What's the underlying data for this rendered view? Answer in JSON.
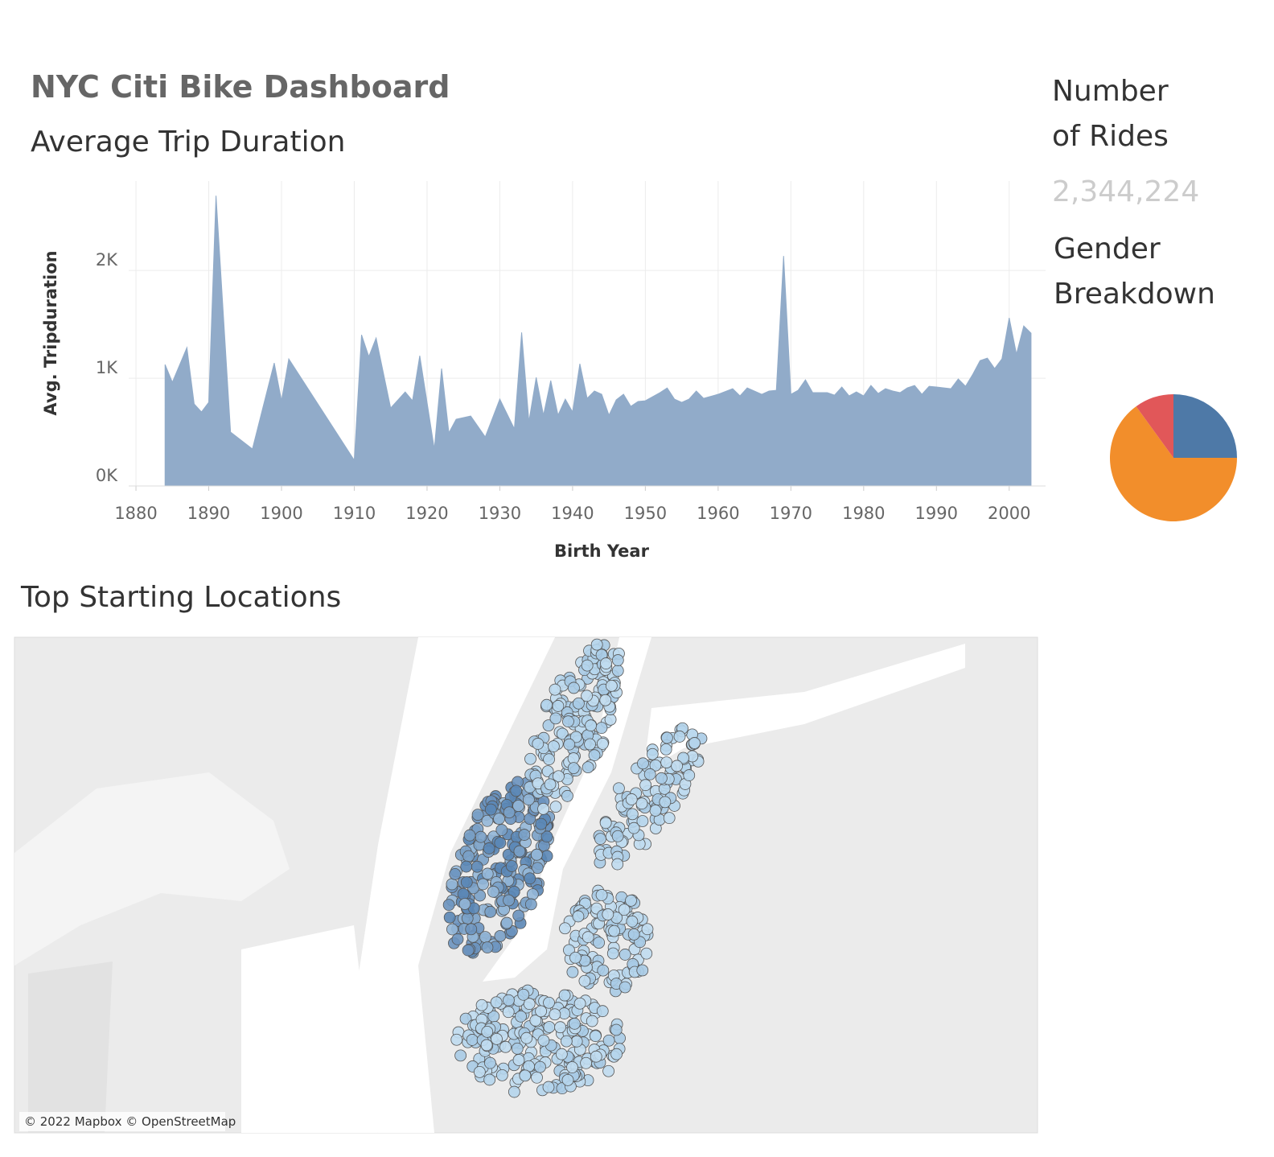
{
  "header": {
    "title": "NYC Citi Bike Dashboard"
  },
  "chart_data": [
    {
      "type": "area",
      "title": "Average Trip Duration",
      "x_label": "Birth Year",
      "y_label": "Avg. Tripduration",
      "color": "#91abc9",
      "x": [
        1884,
        1885,
        1887,
        1888,
        1889,
        1890,
        1891,
        1893,
        1896,
        1899,
        1900,
        1901,
        1910,
        1911,
        1912,
        1913,
        1915,
        1917,
        1918,
        1919,
        1921,
        1922,
        1923,
        1924,
        1926,
        1928,
        1930,
        1932,
        1933,
        1934,
        1935,
        1936,
        1937,
        1938,
        1939,
        1940,
        1941,
        1942,
        1943,
        1944,
        1945,
        1946,
        1947,
        1948,
        1949,
        1950,
        1952,
        1953,
        1954,
        1955,
        1956,
        1957,
        1958,
        1960,
        1962,
        1963,
        1964,
        1966,
        1967,
        1968,
        1969,
        1970,
        1971,
        1972,
        1973,
        1975,
        1976,
        1977,
        1978,
        1979,
        1980,
        1981,
        1982,
        1983,
        1984,
        1985,
        1986,
        1987,
        1988,
        1989,
        1990,
        1992,
        1993,
        1994,
        1995,
        1996,
        1997,
        1998,
        1999,
        2000,
        2001,
        2002,
        2003
      ],
      "values": [
        1127,
        963,
        1284,
        761,
        687,
        776,
        2694,
        500,
        343,
        1142,
        791,
        1179,
        239,
        1403,
        1201,
        1373,
        724,
        873,
        791,
        1209,
        343,
        1090,
        493,
        619,
        649,
        455,
        806,
        530,
        1425,
        597,
        1007,
        657,
        978,
        657,
        806,
        687,
        1134,
        813,
        881,
        851,
        657,
        799,
        851,
        739,
        784,
        791,
        866,
        910,
        806,
        776,
        806,
        881,
        813,
        851,
        903,
        836,
        910,
        851,
        881,
        888,
        2134,
        851,
        888,
        985,
        866,
        866,
        843,
        918,
        836,
        873,
        836,
        933,
        858,
        903,
        881,
        866,
        910,
        933,
        851,
        925,
        918,
        903,
        993,
        925,
        1037,
        1164,
        1187,
        1090,
        1179,
        1560,
        1224,
        1485,
        1418
      ],
      "xlim": [
        1879,
        2005
      ],
      "xticks": [
        1880,
        1890,
        1900,
        1910,
        1920,
        1930,
        1940,
        1950,
        1960,
        1970,
        1980,
        1990,
        2000
      ],
      "ylim": [
        0,
        2830
      ],
      "yticks": [
        {
          "value": 0,
          "label": "0K"
        },
        {
          "value": 1000,
          "label": "1K"
        },
        {
          "value": 2000,
          "label": "2K"
        }
      ],
      "grid": true
    },
    {
      "type": "pie",
      "title": "Gender Breakdown",
      "values": [
        25,
        65,
        10
      ],
      "colors": [
        "#4e79a7",
        "#f28e2b",
        "#e15759"
      ]
    }
  ],
  "kpi": {
    "title": "Number of Rides",
    "value": 2344224,
    "value_label": "2,344,224"
  },
  "map": {
    "title": "Top Starting Locations",
    "attribution": "© 2022 Mapbox © OpenStreetMap"
  }
}
